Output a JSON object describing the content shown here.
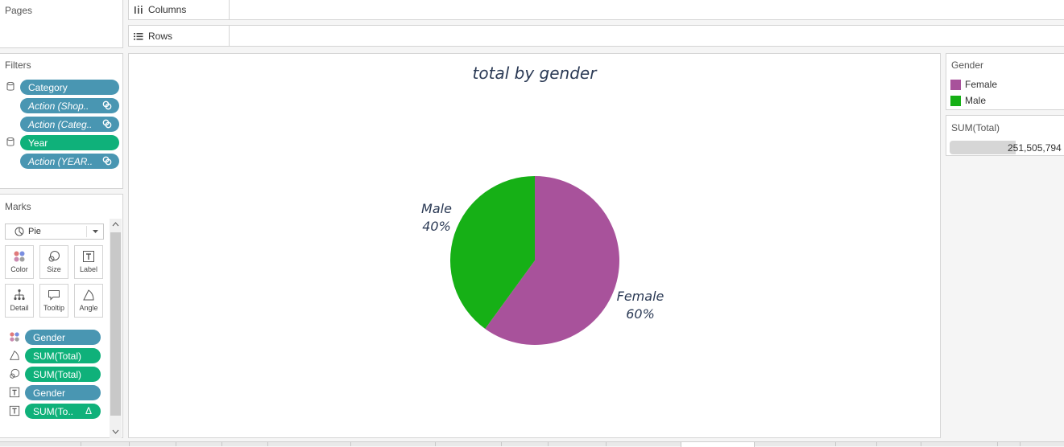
{
  "pages": {
    "title": "Pages"
  },
  "shelves": {
    "columns_label": "Columns",
    "rows_label": "Rows"
  },
  "filters": {
    "title": "Filters",
    "pills": [
      {
        "label": "Category",
        "color": "blue",
        "italic": false
      },
      {
        "label": "Action (Shop..",
        "color": "blue",
        "italic": true
      },
      {
        "label": "Action (Categ..",
        "color": "blue",
        "italic": true
      },
      {
        "label": "Year",
        "color": "green",
        "italic": false
      },
      {
        "label": "Action (YEAR..",
        "color": "blue",
        "italic": true
      }
    ]
  },
  "marks": {
    "title": "Marks",
    "mark_type": "Pie",
    "buttons": [
      "Color",
      "Size",
      "Label",
      "Detail",
      "Tooltip",
      "Angle"
    ],
    "fields": [
      {
        "icon": "color-icon",
        "label": "Gender",
        "color": "blue"
      },
      {
        "icon": "angle-icon",
        "label": "SUM(Total)",
        "color": "green"
      },
      {
        "icon": "size-icon",
        "label": "SUM(Total)",
        "color": "green"
      },
      {
        "icon": "label-icon",
        "label": "Gender",
        "color": "blue"
      },
      {
        "icon": "label-icon",
        "label": "SUM(To..",
        "color": "green",
        "delta": "Δ"
      }
    ]
  },
  "chart": {
    "title": "total by gender"
  },
  "chart_data": {
    "type": "pie",
    "title": "total by gender",
    "slices": [
      {
        "label": "Female",
        "percent_label": "60%",
        "value": 60,
        "color": "#a8529b"
      },
      {
        "label": "Male",
        "percent_label": "40%",
        "value": 40,
        "color": "#16b016"
      }
    ]
  },
  "legend": {
    "title": "Gender",
    "items": [
      {
        "label": "Female",
        "color": "#a8529b"
      },
      {
        "label": "Male",
        "color": "#16b016"
      }
    ]
  },
  "size_legend": {
    "title": "SUM(Total)",
    "value": "251,505,794"
  }
}
